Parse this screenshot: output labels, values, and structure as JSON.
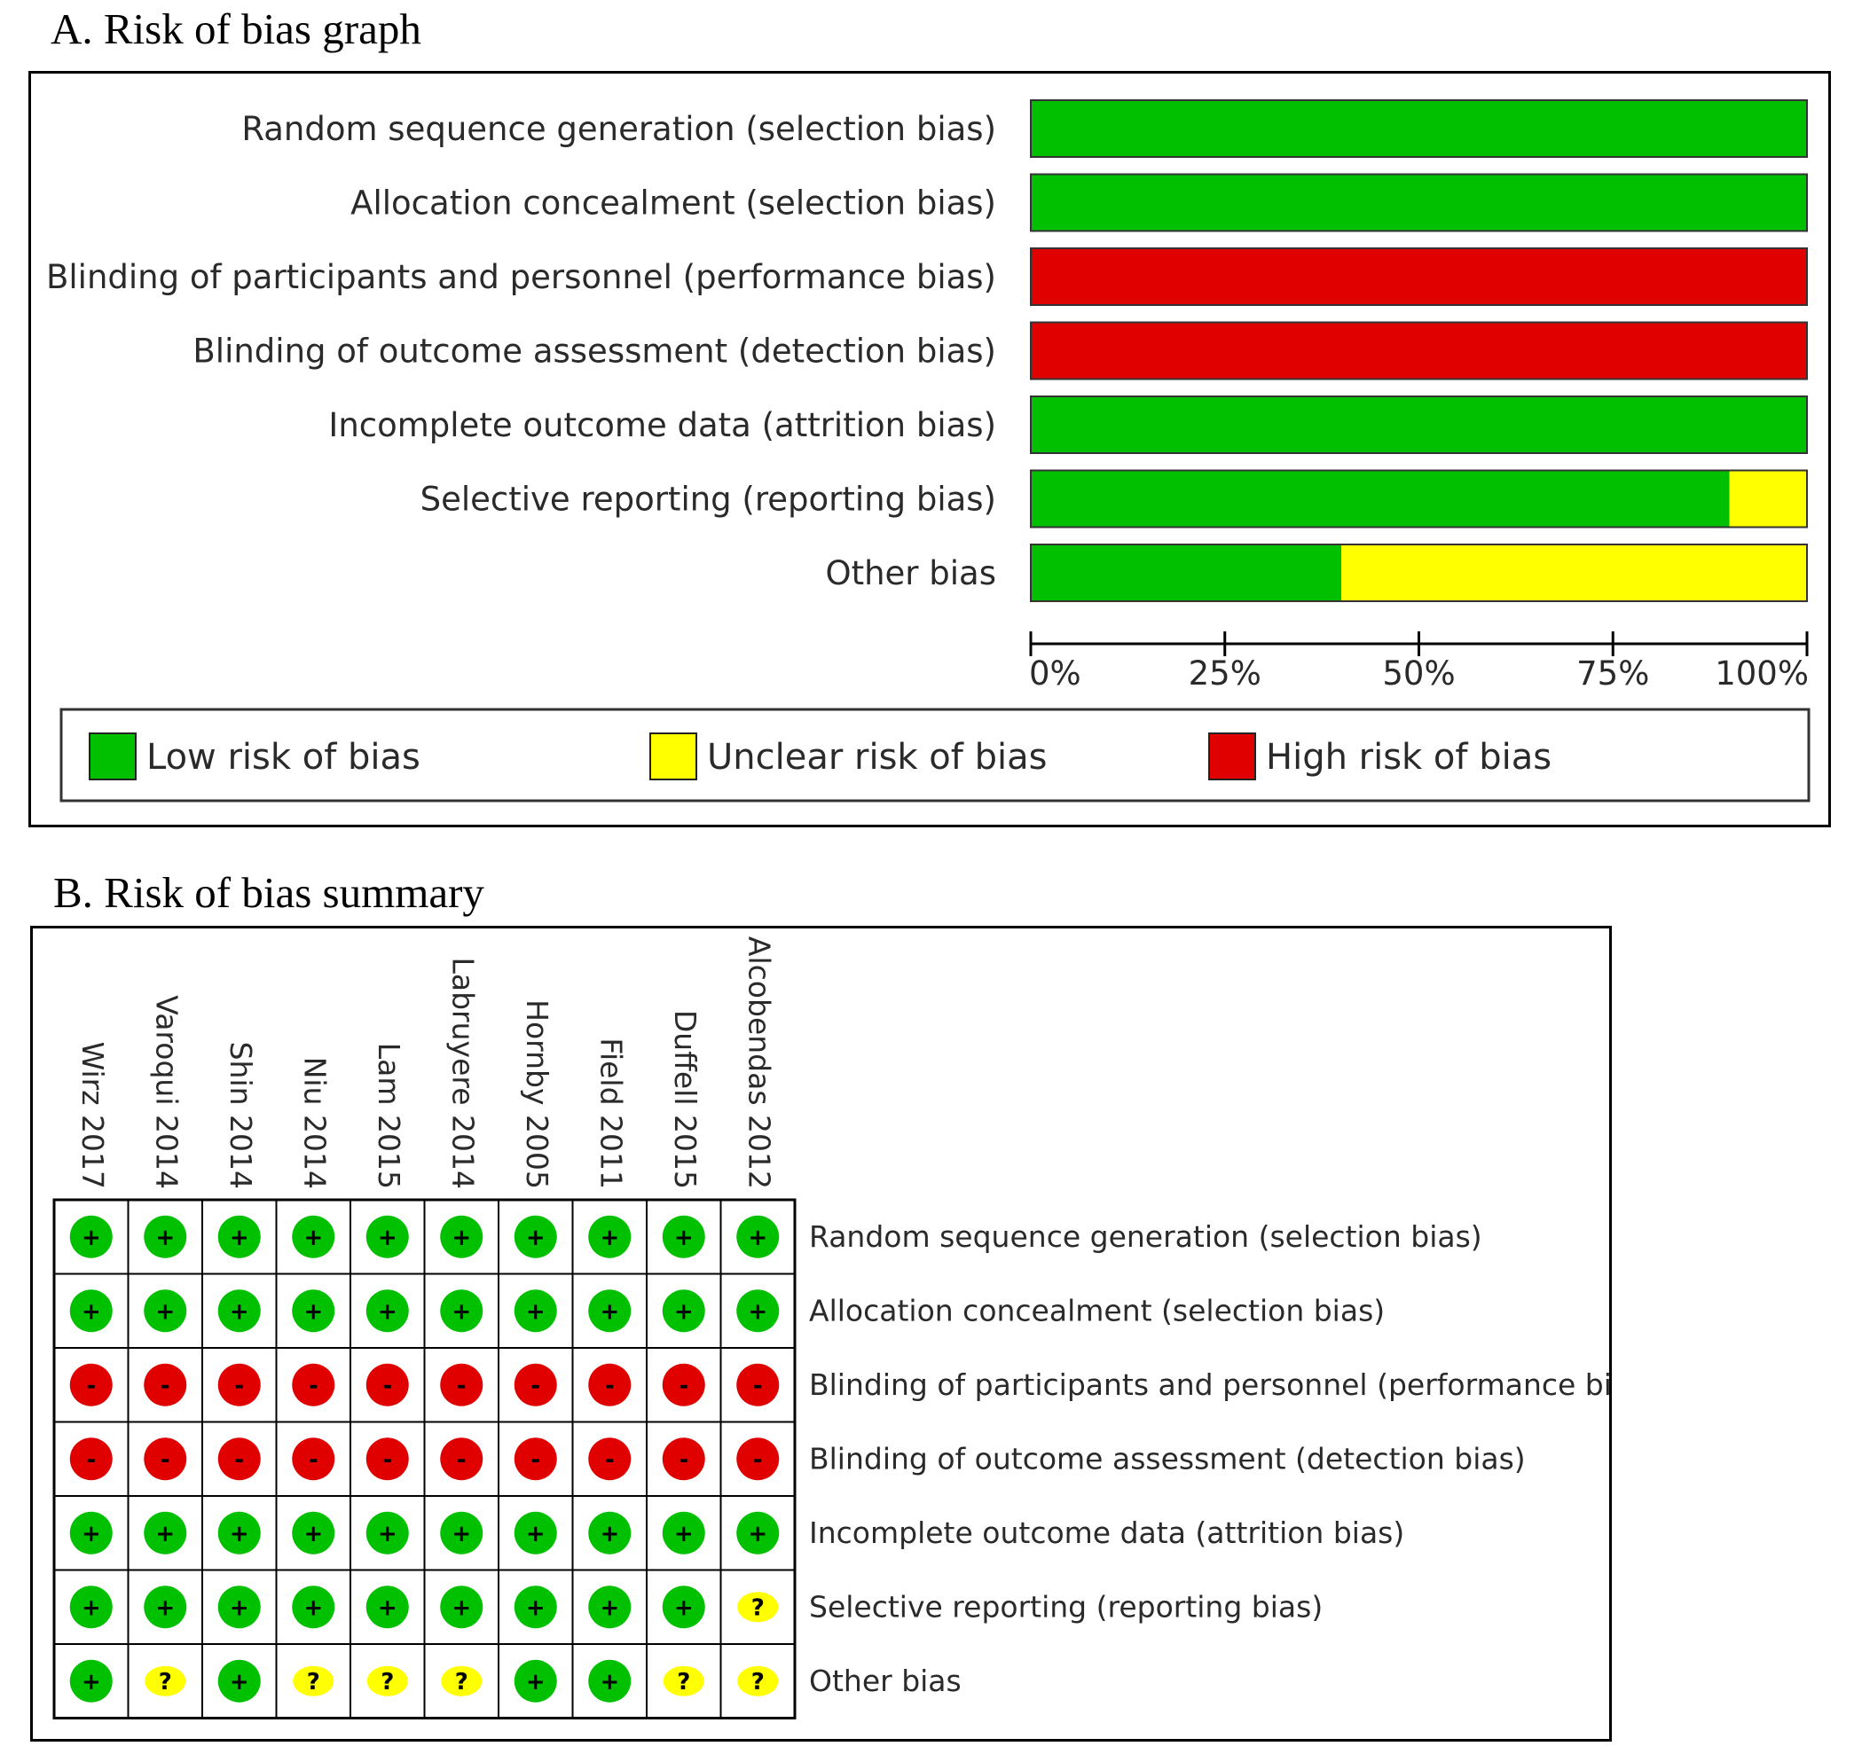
{
  "panel_a": {
    "title": "A. Risk of bias graph"
  },
  "panel_b": {
    "title": "B. Risk of bias summary"
  },
  "colors": {
    "low": "#00c000",
    "unclear": "#ffff00",
    "high": "#e00000"
  },
  "chart_data": [
    {
      "type": "bar",
      "orientation": "horizontal",
      "stacked": true,
      "title": "A. Risk of bias graph",
      "xlabel": "",
      "ylabel": "",
      "xlim": [
        0,
        100
      ],
      "x_ticks": [
        "0%",
        "25%",
        "50%",
        "75%",
        "100%"
      ],
      "categories": [
        "Random sequence generation (selection bias)",
        "Allocation concealment (selection bias)",
        "Blinding of participants and personnel (performance bias)",
        "Blinding of outcome assessment (detection bias)",
        "Incomplete outcome data (attrition bias)",
        "Selective reporting (reporting bias)",
        "Other bias"
      ],
      "series": [
        {
          "name": "Low risk of bias",
          "color": "#00c000",
          "values": [
            100,
            100,
            0,
            0,
            100,
            90,
            40
          ]
        },
        {
          "name": "Unclear risk of bias",
          "color": "#ffff00",
          "values": [
            0,
            0,
            0,
            0,
            0,
            10,
            60
          ]
        },
        {
          "name": "High risk of bias",
          "color": "#e00000",
          "values": [
            0,
            0,
            100,
            100,
            0,
            0,
            0
          ]
        }
      ],
      "legend": [
        "Low risk of bias",
        "Unclear risk of bias",
        "High risk of bias"
      ],
      "legend_position": "bottom"
    },
    {
      "type": "table",
      "title": "B. Risk of bias summary",
      "studies": [
        "Wirz 2017",
        "Varoqui 2014",
        "Shin 2014",
        "Niu 2014",
        "Lam 2015",
        "Labruyere 2014",
        "Hornby 2005",
        "Field 2011",
        "Duffell 2015",
        "Alcobendas 2012"
      ],
      "domains": [
        "Random sequence generation (selection bias)",
        "Allocation concealment (selection bias)",
        "Blinding of participants and personnel (performance bias)",
        "Blinding of outcome assessment (detection bias)",
        "Incomplete outcome data (attrition bias)",
        "Selective reporting (reporting bias)",
        "Other bias"
      ],
      "judgements": [
        [
          "low",
          "low",
          "low",
          "low",
          "low",
          "low",
          "low",
          "low",
          "low",
          "low"
        ],
        [
          "low",
          "low",
          "low",
          "low",
          "low",
          "low",
          "low",
          "low",
          "low",
          "low"
        ],
        [
          "high",
          "high",
          "high",
          "high",
          "high",
          "high",
          "high",
          "high",
          "high",
          "high"
        ],
        [
          "high",
          "high",
          "high",
          "high",
          "high",
          "high",
          "high",
          "high",
          "high",
          "high"
        ],
        [
          "low",
          "low",
          "low",
          "low",
          "low",
          "low",
          "low",
          "low",
          "low",
          "low"
        ],
        [
          "low",
          "low",
          "low",
          "low",
          "low",
          "low",
          "low",
          "low",
          "low",
          "unclear"
        ],
        [
          "low",
          "unclear",
          "low",
          "unclear",
          "unclear",
          "unclear",
          "low",
          "low",
          "unclear",
          "unclear"
        ]
      ],
      "symbols": {
        "low": "+",
        "unclear": "?",
        "high": "-"
      }
    }
  ]
}
